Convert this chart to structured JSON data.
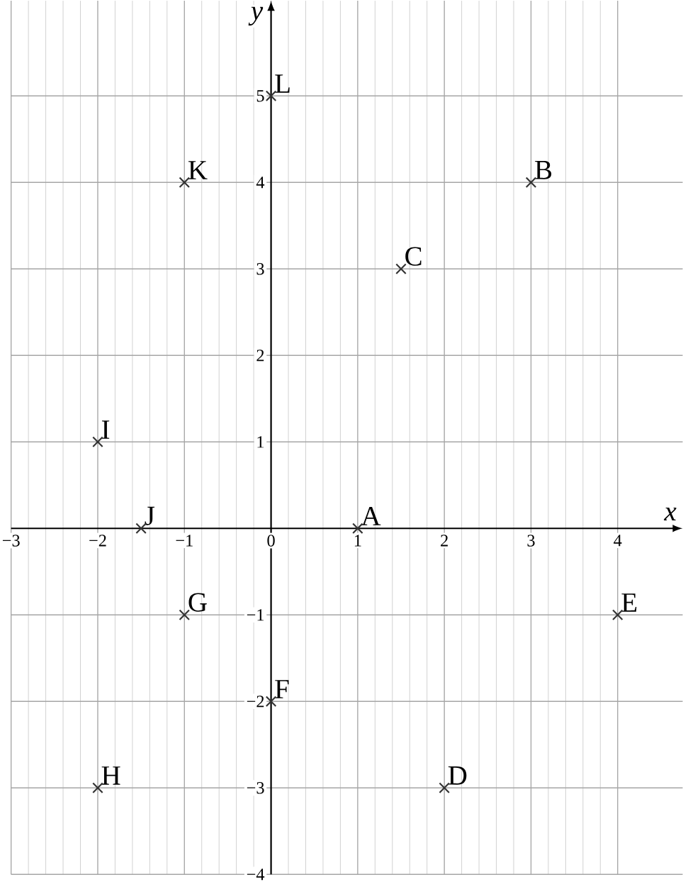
{
  "chart_data": {
    "type": "scatter",
    "xlabel": "x",
    "ylabel": "y",
    "x": [
      1,
      3,
      1.5,
      2,
      4,
      0,
      -1,
      -2,
      -2,
      -1.5,
      -1,
      0
    ],
    "values": [
      0,
      4,
      3,
      -3,
      -1,
      -2,
      -1,
      -3,
      1,
      0,
      4,
      5
    ],
    "color": "#333333",
    "marker": "cross",
    "grid": true,
    "xlim": [
      -3,
      4.75
    ],
    "ylim": [
      -4,
      6.1
    ],
    "xticks": [
      {
        "value": -3,
        "label": "−3"
      },
      {
        "value": -2,
        "label": "−2"
      },
      {
        "value": -1,
        "label": "−1"
      },
      0,
      1,
      2,
      3,
      4
    ],
    "yticks": [
      {
        "value": -4,
        "label": "−4"
      },
      {
        "value": -3,
        "label": "−3"
      },
      {
        "value": -2,
        "label": "−2"
      },
      {
        "value": -1,
        "label": "−1"
      },
      1,
      2,
      3,
      4,
      5
    ],
    "annotations": [
      {
        "text": "A",
        "x": 1,
        "y": 0
      },
      {
        "text": "B",
        "x": 3,
        "y": 4
      },
      {
        "text": "C",
        "x": 1.5,
        "y": 3
      },
      {
        "text": "D",
        "x": 2,
        "y": -3
      },
      {
        "text": "E",
        "x": 4,
        "y": -1
      },
      {
        "text": "F",
        "x": 0,
        "y": -2
      },
      {
        "text": "G",
        "x": -1,
        "y": -1
      },
      {
        "text": "H",
        "x": -2,
        "y": -3
      },
      {
        "text": "I",
        "x": -2,
        "y": 1
      },
      {
        "text": "J",
        "x": -1.5,
        "y": 0
      },
      {
        "text": "K",
        "x": -1,
        "y": 4
      },
      {
        "text": "L",
        "x": 0,
        "y": 5
      }
    ]
  }
}
